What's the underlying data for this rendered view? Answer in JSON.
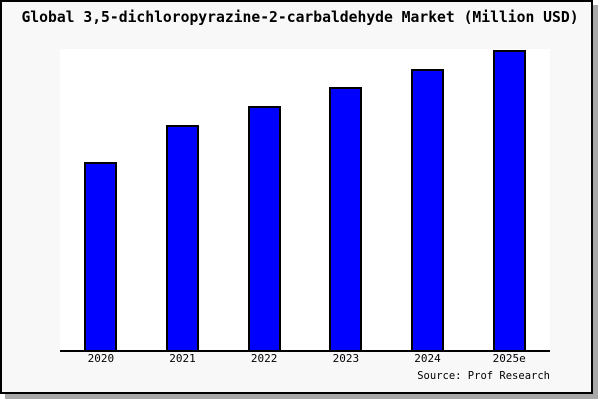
{
  "window": {
    "background_color": "#ffffff"
  },
  "card": {
    "background_color": "#f8f8f8",
    "border_color": "#000000",
    "shadow_color": "#a8a8a8"
  },
  "chart_data": {
    "type": "bar",
    "title": "Global 3,5-dichloropyrazine-2-carbaldehyde Market (Million USD)",
    "categories": [
      "2020",
      "2021",
      "2022",
      "2023",
      "2024",
      "2025e"
    ],
    "values": [
      62.7,
      75.2,
      81.3,
      87.6,
      93.6,
      100
    ],
    "values_note": "y-axis has no ticks or labels; values estimated from bar heights as percent of tallest bar (2025e = 100)",
    "xlabel": "",
    "ylabel": "",
    "ylim": [
      0,
      100.4
    ],
    "grid": false,
    "legend": false,
    "plot_background": "#ffffff",
    "bar_color": "#0000ff",
    "bar_border_color": "#000000",
    "axis_color": "#000000",
    "source_label": "Source: Prof Research"
  }
}
